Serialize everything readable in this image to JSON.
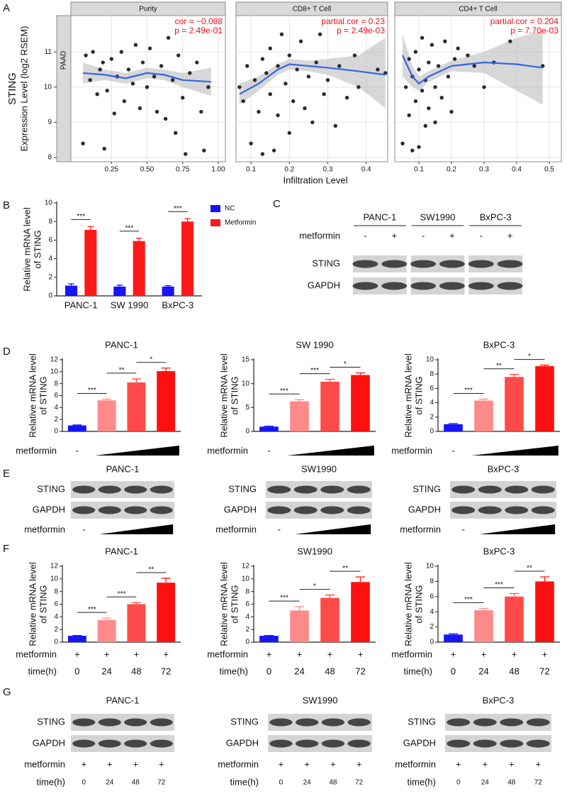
{
  "panels": [
    "A",
    "B",
    "C",
    "D",
    "E",
    "F",
    "G"
  ],
  "chart_data": [
    {
      "type": "scatter",
      "title": "Purity",
      "row_strip": "PAAD",
      "y_label": [
        "STING",
        "Expression Level (log2 RSEM)"
      ],
      "x_label": "Infiltration Level",
      "annotations": [
        "cor = −0.088",
        "p = 2.49e-01"
      ],
      "color": "#2a2a2a",
      "fit_color": "#3366e6",
      "grid": true,
      "xlim": [
        -0.035,
        1.05
      ],
      "ylim": [
        7.88,
        12.03
      ],
      "xticks": [
        0.25,
        {
          "value": 0.5,
          "label": "0.50"
        },
        0.75,
        {
          "value": 1,
          "label": "1.00"
        }
      ],
      "yticks": [
        8,
        9,
        10,
        11
      ],
      "x": [
        0.05,
        0.07,
        0.1,
        0.12,
        0.15,
        0.17,
        0.19,
        0.2,
        0.22,
        0.25,
        0.27,
        0.29,
        0.32,
        0.34,
        0.37,
        0.4,
        0.42,
        0.45,
        0.47,
        0.5,
        0.52,
        0.55,
        0.57,
        0.6,
        0.63,
        0.65,
        0.68,
        0.7,
        0.72,
        0.75,
        0.77,
        0.8,
        0.85,
        0.88,
        0.9,
        0.93
      ],
      "y": [
        8.4,
        10.9,
        10.2,
        11.0,
        9.8,
        10.5,
        10.7,
        8.25,
        9.9,
        10.8,
        9.25,
        10.3,
        11.0,
        9.6,
        10.5,
        10.1,
        11.2,
        9.4,
        10.7,
        10.0,
        11.1,
        10.3,
        9.3,
        10.6,
        9.1,
        11.4,
        10.2,
        8.7,
        10.9,
        9.7,
        8.1,
        10.4,
        10.7,
        9.3,
        8.2,
        10.0
      ],
      "fit": {
        "x": [
          0.05,
          0.2,
          0.35,
          0.5,
          0.62,
          0.75,
          0.95
        ],
        "y": [
          10.4,
          10.35,
          10.25,
          10.4,
          10.35,
          10.2,
          10.15
        ],
        "lower": [
          10.1,
          10.2,
          10.1,
          10.25,
          10.2,
          10.0,
          9.75
        ],
        "upper": [
          10.7,
          10.5,
          10.4,
          10.55,
          10.5,
          10.4,
          10.55
        ]
      }
    },
    {
      "type": "scatter",
      "title": "CD8+ T Cell",
      "annotations": [
        "partial.cor = 0.23",
        "p = 2.49e-03"
      ],
      "color": "#2a2a2a",
      "fit_color": "#3366e6",
      "grid": true,
      "xlim": [
        0.061,
        0.456
      ],
      "ylim": [
        7.88,
        12.03
      ],
      "xticks": [
        0.1,
        0.2,
        0.3,
        0.4
      ],
      "x": [
        0.07,
        0.08,
        0.09,
        0.1,
        0.11,
        0.12,
        0.13,
        0.13,
        0.14,
        0.15,
        0.15,
        0.16,
        0.17,
        0.17,
        0.18,
        0.19,
        0.2,
        0.2,
        0.21,
        0.22,
        0.23,
        0.24,
        0.25,
        0.26,
        0.27,
        0.28,
        0.29,
        0.3,
        0.32,
        0.33,
        0.35,
        0.37,
        0.38,
        0.43,
        0.45
      ],
      "y": [
        10.0,
        9.6,
        10.6,
        8.4,
        10.2,
        9.3,
        10.8,
        8.1,
        10.4,
        9.8,
        11.1,
        8.2,
        10.6,
        9.2,
        11.5,
        10.1,
        10.9,
        8.7,
        9.6,
        10.5,
        11.3,
        9.4,
        10.3,
        9.0,
        10.7,
        11.5,
        9.8,
        10.2,
        8.9,
        10.6,
        9.7,
        10.9,
        10.0,
        10.5,
        10.4
      ],
      "fit": {
        "x": [
          0.07,
          0.12,
          0.17,
          0.2,
          0.25,
          0.3,
          0.38,
          0.45
        ],
        "y": [
          9.8,
          10.1,
          10.5,
          10.65,
          10.6,
          10.55,
          10.45,
          10.35
        ],
        "lower": [
          9.5,
          9.9,
          10.35,
          10.5,
          10.45,
          10.35,
          10.0,
          9.4
        ],
        "upper": [
          10.1,
          10.3,
          10.65,
          10.8,
          10.75,
          10.8,
          10.9,
          11.4
        ]
      }
    },
    {
      "type": "scatter",
      "title": "CD4+ T Cell",
      "annotations": [
        "partial.cor = 0.204",
        "p = 7.70e-03"
      ],
      "color": "#2a2a2a",
      "fit_color": "#3366e6",
      "grid": true,
      "xlim": [
        0.026,
        0.537
      ],
      "ylim": [
        7.88,
        12.03
      ],
      "xticks": [
        0.1,
        0.2,
        0.3,
        0.4,
        0.5
      ],
      "x": [
        0.05,
        0.06,
        0.07,
        0.07,
        0.08,
        0.08,
        0.09,
        0.09,
        0.1,
        0.1,
        0.11,
        0.11,
        0.12,
        0.12,
        0.13,
        0.13,
        0.14,
        0.15,
        0.15,
        0.16,
        0.17,
        0.18,
        0.19,
        0.2,
        0.21,
        0.22,
        0.25,
        0.27,
        0.3,
        0.33,
        0.38,
        0.48
      ],
      "y": [
        8.4,
        10.0,
        10.8,
        9.2,
        10.3,
        8.2,
        11.0,
        9.6,
        10.5,
        8.3,
        11.4,
        9.9,
        10.2,
        8.9,
        10.7,
        9.4,
        11.2,
        10.0,
        9.0,
        10.6,
        9.7,
        11.3,
        10.3,
        9.3,
        10.8,
        11.1,
        10.9,
        10.6,
        10.0,
        10.7,
        11.3,
        10.6
      ],
      "fit": {
        "x": [
          0.05,
          0.08,
          0.1,
          0.13,
          0.2,
          0.3,
          0.4,
          0.48
        ],
        "y": [
          10.9,
          10.3,
          10.1,
          10.3,
          10.6,
          10.7,
          10.65,
          10.55
        ],
        "lower": [
          10.3,
          10.0,
          9.9,
          10.15,
          10.45,
          10.4,
          9.9,
          9.5
        ],
        "upper": [
          11.5,
          10.6,
          10.3,
          10.45,
          10.75,
          11.0,
          11.4,
          11.6
        ]
      }
    },
    {
      "type": "bar",
      "y_label": [
        "Relative mRNA level",
        "of STING"
      ],
      "legend": "right",
      "categories": [
        "PANC-1",
        "SW 1990",
        "BxPC-3"
      ],
      "ylim": [
        0,
        10
      ],
      "yticks": [
        0,
        2,
        4,
        6,
        8,
        10
      ],
      "series": [
        {
          "name": "NC",
          "color": "#1515f5",
          "values": [
            1.1,
            1.0,
            1.0
          ],
          "errors": [
            0.2,
            0.15,
            0.1
          ]
        },
        {
          "name": "Metformin",
          "color": "#ff1a1a",
          "values": [
            7.1,
            5.9,
            8.0
          ],
          "errors": [
            0.35,
            0.3,
            0.3
          ]
        }
      ],
      "significance": [
        "***",
        "***",
        "***"
      ]
    },
    {
      "type": "bar",
      "title": "PANC-1",
      "y_label": [
        "Relative mRNA level",
        "of STING"
      ],
      "category_label": "metformin",
      "categories": [
        "-",
        null,
        null,
        null
      ],
      "ylim": [
        0,
        12
      ],
      "yticks": [
        0,
        2,
        4,
        6,
        8,
        10,
        12
      ],
      "colors": [
        "#1515f5",
        "#ff8a8a",
        "#ff4a4a",
        "#ff1010"
      ],
      "values": [
        1.0,
        5.2,
        8.2,
        10.1
      ],
      "errors": [
        0.08,
        0.2,
        0.6,
        0.5
      ],
      "significance": [
        "***",
        "**",
        "*"
      ]
    },
    {
      "type": "bar",
      "title": "SW 1990",
      "y_label": [
        "Relative mRNA level",
        "of STING"
      ],
      "category_label": "metformin",
      "categories": [
        "-",
        null,
        null,
        null
      ],
      "ylim": [
        0,
        15
      ],
      "yticks": [
        0,
        5,
        10,
        15
      ],
      "colors": [
        "#1515f5",
        "#ff8a8a",
        "#ff4a4a",
        "#ff1010"
      ],
      "values": [
        1.0,
        6.3,
        10.4,
        11.8
      ],
      "errors": [
        0.1,
        0.35,
        0.5,
        0.45
      ],
      "significance": [
        "***",
        "***",
        "*"
      ]
    },
    {
      "type": "bar",
      "title": "BxPC-3",
      "y_label": [
        "Relative mRNA level",
        "of STING"
      ],
      "category_label": "metformin",
      "categories": [
        "-",
        null,
        null,
        null
      ],
      "ylim": [
        0,
        10
      ],
      "yticks": [
        0,
        2,
        4,
        6,
        8,
        10
      ],
      "colors": [
        "#1515f5",
        "#ff8a8a",
        "#ff4a4a",
        "#ff1010"
      ],
      "values": [
        1.0,
        4.3,
        7.6,
        9.1
      ],
      "errors": [
        0.1,
        0.2,
        0.35,
        0.15
      ],
      "significance": [
        "***",
        "**",
        "*"
      ]
    },
    {
      "type": "bar",
      "title": "PANC-1",
      "y_label": [
        "Relative mRNA level",
        "of STING"
      ],
      "rows": [
        {
          "label": "metformin",
          "cells": [
            "+",
            "+",
            "+",
            "+"
          ]
        }
      ],
      "category_label": "time(h)",
      "categories": [
        "0",
        "24",
        "48",
        "72"
      ],
      "ylim": [
        0,
        12
      ],
      "yticks": [
        0,
        2,
        4,
        6,
        8,
        10,
        12
      ],
      "colors": [
        "#1515f5",
        "#ff8a8a",
        "#ff4a4a",
        "#ff1010"
      ],
      "values": [
        1.0,
        3.5,
        6.0,
        9.4
      ],
      "errors": [
        0.05,
        0.3,
        0.25,
        0.7
      ],
      "significance": [
        "***",
        "***",
        "**"
      ]
    },
    {
      "type": "bar",
      "title": "SW1990",
      "y_label": [
        "Relative mRNA level",
        "of STING"
      ],
      "rows": [
        {
          "label": "metformin",
          "cells": [
            "+",
            "+",
            "+",
            "+"
          ]
        }
      ],
      "category_label": "time(h)",
      "categories": [
        "0",
        "24",
        "48",
        "72"
      ],
      "ylim": [
        0,
        12
      ],
      "yticks": [
        0,
        2,
        4,
        6,
        8,
        10,
        12
      ],
      "colors": [
        "#1515f5",
        "#ff8a8a",
        "#ff4a4a",
        "#ff1010"
      ],
      "values": [
        1.0,
        5.0,
        7.0,
        9.5
      ],
      "errors": [
        0.05,
        0.6,
        0.45,
        0.8
      ],
      "significance": [
        "***",
        "*",
        "**"
      ]
    },
    {
      "type": "bar",
      "title": "BxPC-3",
      "y_label": [
        "Relative mRNA level",
        "of STING"
      ],
      "rows": [
        {
          "label": "metformin",
          "cells": [
            "+",
            "+",
            "+",
            "+"
          ]
        }
      ],
      "category_label": "time(h)",
      "categories": [
        "0",
        "24",
        "48",
        "72"
      ],
      "ylim": [
        0,
        10
      ],
      "yticks": [
        0,
        2,
        4,
        6,
        8,
        10
      ],
      "colors": [
        "#1515f5",
        "#ff8a8a",
        "#ff4a4a",
        "#ff1010"
      ],
      "values": [
        1.0,
        4.2,
        6.0,
        8.0
      ],
      "errors": [
        0.1,
        0.25,
        0.4,
        0.6
      ],
      "significance": [
        "***",
        "***",
        "**"
      ]
    }
  ],
  "blots": [
    {
      "columns": [
        "PANC-1",
        "SW1990",
        "BxPC-3"
      ],
      "treatments": [
        {
          "label": "metformin",
          "cells": [
            "-",
            "+",
            "-",
            "+",
            "-",
            "+"
          ]
        }
      ],
      "rows": [
        "STING",
        "GAPDH"
      ]
    },
    {
      "title": "PANC-1",
      "rows": [
        "STING",
        "GAPDH"
      ],
      "treatments": [
        {
          "label": "metformin",
          "cells": [
            "-",
            null,
            null,
            null
          ]
        }
      ]
    },
    {
      "title": "SW1990",
      "rows": [
        "STING",
        "GAPDH"
      ],
      "treatments": [
        {
          "label": "metformin",
          "cells": [
            "-",
            null,
            null,
            null
          ]
        }
      ]
    },
    {
      "title": "BxPC-3",
      "rows": [
        "STING",
        "GAPDH"
      ],
      "treatments": [
        {
          "label": "metformin",
          "cells": [
            "-",
            null,
            null,
            null
          ]
        }
      ]
    },
    {
      "title": "PANC-1",
      "rows": [
        "STING",
        "GAPDH"
      ],
      "treatments": [
        {
          "label": "metformin",
          "cells": [
            "+",
            "+",
            "+",
            "+"
          ]
        },
        {
          "label": "time(h)",
          "cells": [
            "0",
            "24",
            "48",
            "72"
          ]
        }
      ]
    },
    {
      "title": "SW1990",
      "rows": [
        "STING",
        "GAPDH"
      ],
      "treatments": [
        {
          "label": "metformin",
          "cells": [
            "+",
            "+",
            "+",
            "+"
          ]
        },
        {
          "label": "time(h)",
          "cells": [
            "0",
            "24",
            "48",
            "72"
          ]
        }
      ]
    },
    {
      "title": "BxPC-3",
      "rows": [
        "STING",
        "GAPDH"
      ],
      "treatments": [
        {
          "label": "metformin",
          "cells": [
            "+",
            "+",
            "+",
            "+"
          ]
        },
        {
          "label": "time(h)",
          "cells": [
            "0",
            "24",
            "48",
            "72"
          ]
        }
      ]
    }
  ]
}
